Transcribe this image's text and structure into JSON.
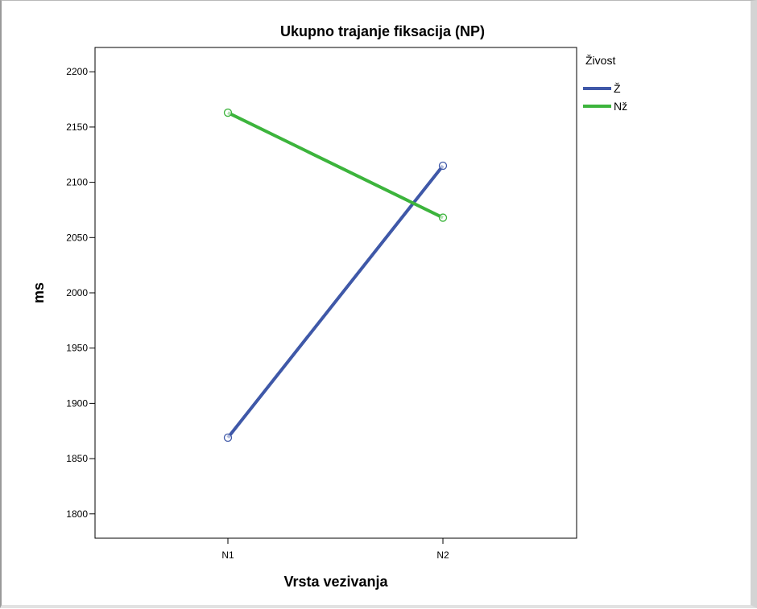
{
  "chart_data": {
    "type": "line",
    "title": "Ukupno trajanje fiksacija (NP)",
    "xlabel": "Vrsta vezivanja",
    "ylabel": "ms",
    "categories": [
      "N1",
      "N2"
    ],
    "ylim": [
      1778,
      2222
    ],
    "yticks": [
      1800,
      1850,
      1900,
      1950,
      2000,
      2050,
      2100,
      2150,
      2200
    ],
    "grid": false,
    "legend": {
      "title": "Živost",
      "placement": "right"
    },
    "series": [
      {
        "name": "Ž",
        "color": "#3f58a8",
        "values": [
          1869,
          2115
        ]
      },
      {
        "name": "Nž",
        "color": "#3cb43c",
        "values": [
          2163,
          2068
        ]
      }
    ]
  }
}
